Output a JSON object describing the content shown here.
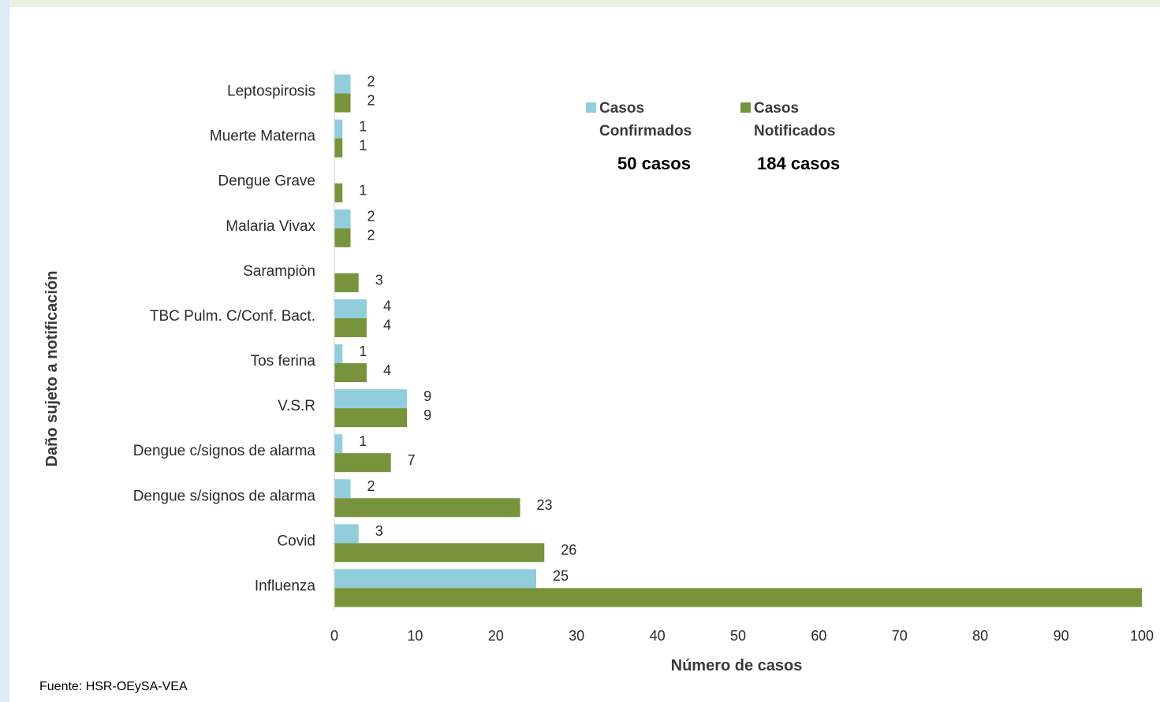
{
  "chart_data": {
    "type": "bar",
    "orientation": "horizontal",
    "categories": [
      "Leptospirosis",
      "Muerte Materna",
      "Dengue Grave",
      "Malaria Vivax",
      "Sarampiòn",
      "TBC Pulm. C/Conf. Bact.",
      "Tos ferina",
      "V.S.R",
      "Dengue c/signos de alarma",
      "Dengue s/signos de alarma",
      "Covid",
      "Influenza"
    ],
    "series": [
      {
        "name": "Casos Confirmados",
        "color": "#92cddc",
        "values": [
          2,
          1,
          null,
          2,
          null,
          4,
          1,
          9,
          1,
          2,
          3,
          25
        ]
      },
      {
        "name": "Casos Notificados",
        "color": "#77933c",
        "values": [
          2,
          1,
          1,
          2,
          3,
          4,
          4,
          9,
          7,
          23,
          26,
          102
        ]
      }
    ],
    "data_labels": {
      "confirmados": [
        "2",
        "1",
        "",
        "2",
        "",
        "4",
        "1",
        "9",
        "1",
        "2",
        "3",
        "25"
      ],
      "notificados": [
        "2",
        "1",
        "1",
        "2",
        "3",
        "4",
        "4",
        "9",
        "7",
        "23",
        "26",
        ""
      ]
    },
    "xlabel": "Número de casos",
    "ylabel": "Daño sujeto a notificación",
    "xlim": [
      0,
      100
    ],
    "xticks": [
      0,
      10,
      20,
      30,
      40,
      50,
      60,
      70,
      80,
      90,
      100
    ],
    "legend": {
      "placement": "top-right",
      "items": [
        {
          "line1": "Casos",
          "line2": "Confirmados",
          "total": "50  casos",
          "color": "#92cddc"
        },
        {
          "line1": "Casos",
          "line2": "Notificados",
          "total": "184  casos",
          "color": "#77933c"
        }
      ]
    }
  },
  "source": "Fuente: HSR-OEySA-VEA"
}
